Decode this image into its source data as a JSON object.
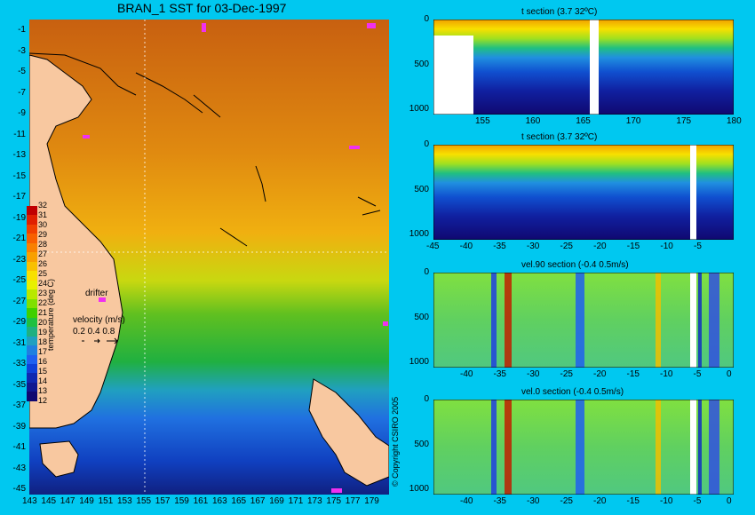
{
  "map": {
    "title": "BRAN_1 SST for 03-Dec-1997",
    "lat_labels": [
      "-1",
      "-3",
      "-5",
      "-7",
      "-9",
      "-11",
      "-13",
      "-15",
      "-17",
      "-19",
      "-21",
      "-23",
      "-25",
      "-27",
      "-29",
      "-31",
      "-33",
      "-35",
      "-37",
      "-39",
      "-41",
      "-43",
      "-45"
    ],
    "lon_labels": [
      "143",
      "145",
      "147",
      "149",
      "151",
      "153",
      "155",
      "157",
      "159",
      "161",
      "163",
      "165",
      "167",
      "169",
      "171",
      "173",
      "175",
      "177",
      "179"
    ],
    "colorbar": {
      "label": "temperature (deg C)",
      "ticks": [
        "32",
        "31",
        "30",
        "29",
        "28",
        "27",
        "26",
        "25",
        "24",
        "23",
        "22",
        "21",
        "20",
        "19",
        "18",
        "17",
        "16",
        "15",
        "14",
        "13",
        "12"
      ],
      "colors": [
        "#c00000",
        "#e02000",
        "#f04000",
        "#f86000",
        "#f88000",
        "#f8a000",
        "#f8c000",
        "#f8e000",
        "#e8f000",
        "#b8e800",
        "#80e000",
        "#40d000",
        "#20c040",
        "#20b080",
        "#20a0c0",
        "#2080e0",
        "#2060f0",
        "#1040d8",
        "#1028b0",
        "#101890",
        "#100870"
      ]
    },
    "drifter_label": "drifter",
    "velocity_label": "velocity (m/s)",
    "velocity_scale": "0.2 0.4 0.8"
  },
  "copyright": "© Copyright CSIRO 2005",
  "sections": [
    {
      "title": "t section (3.7      32ºC)",
      "x_ticks": [
        "155",
        "160",
        "165",
        "170",
        "175",
        "180"
      ],
      "y_ticks": [
        "0",
        "500",
        "1000"
      ]
    },
    {
      "title": "t section (3.7      32ºC)",
      "x_ticks": [
        "-45",
        "-40",
        "-35",
        "-30",
        "-25",
        "-20",
        "-15",
        "-10",
        "-5"
      ],
      "y_ticks": [
        "0",
        "500",
        "1000"
      ]
    },
    {
      "title": "vel.90 section (-0.4      0.5m/s)",
      "x_ticks": [
        "-40",
        "-35",
        "-30",
        "-25",
        "-20",
        "-15",
        "-10",
        "-5",
        "0"
      ],
      "y_ticks": [
        "0",
        "500",
        "1000"
      ]
    },
    {
      "title": "vel.0 section (-0.4      0.5m/s)",
      "x_ticks": [
        "-40",
        "-35",
        "-30",
        "-25",
        "-20",
        "-15",
        "-10",
        "-5",
        "0"
      ],
      "y_ticks": [
        "0",
        "500",
        "1000"
      ]
    }
  ]
}
